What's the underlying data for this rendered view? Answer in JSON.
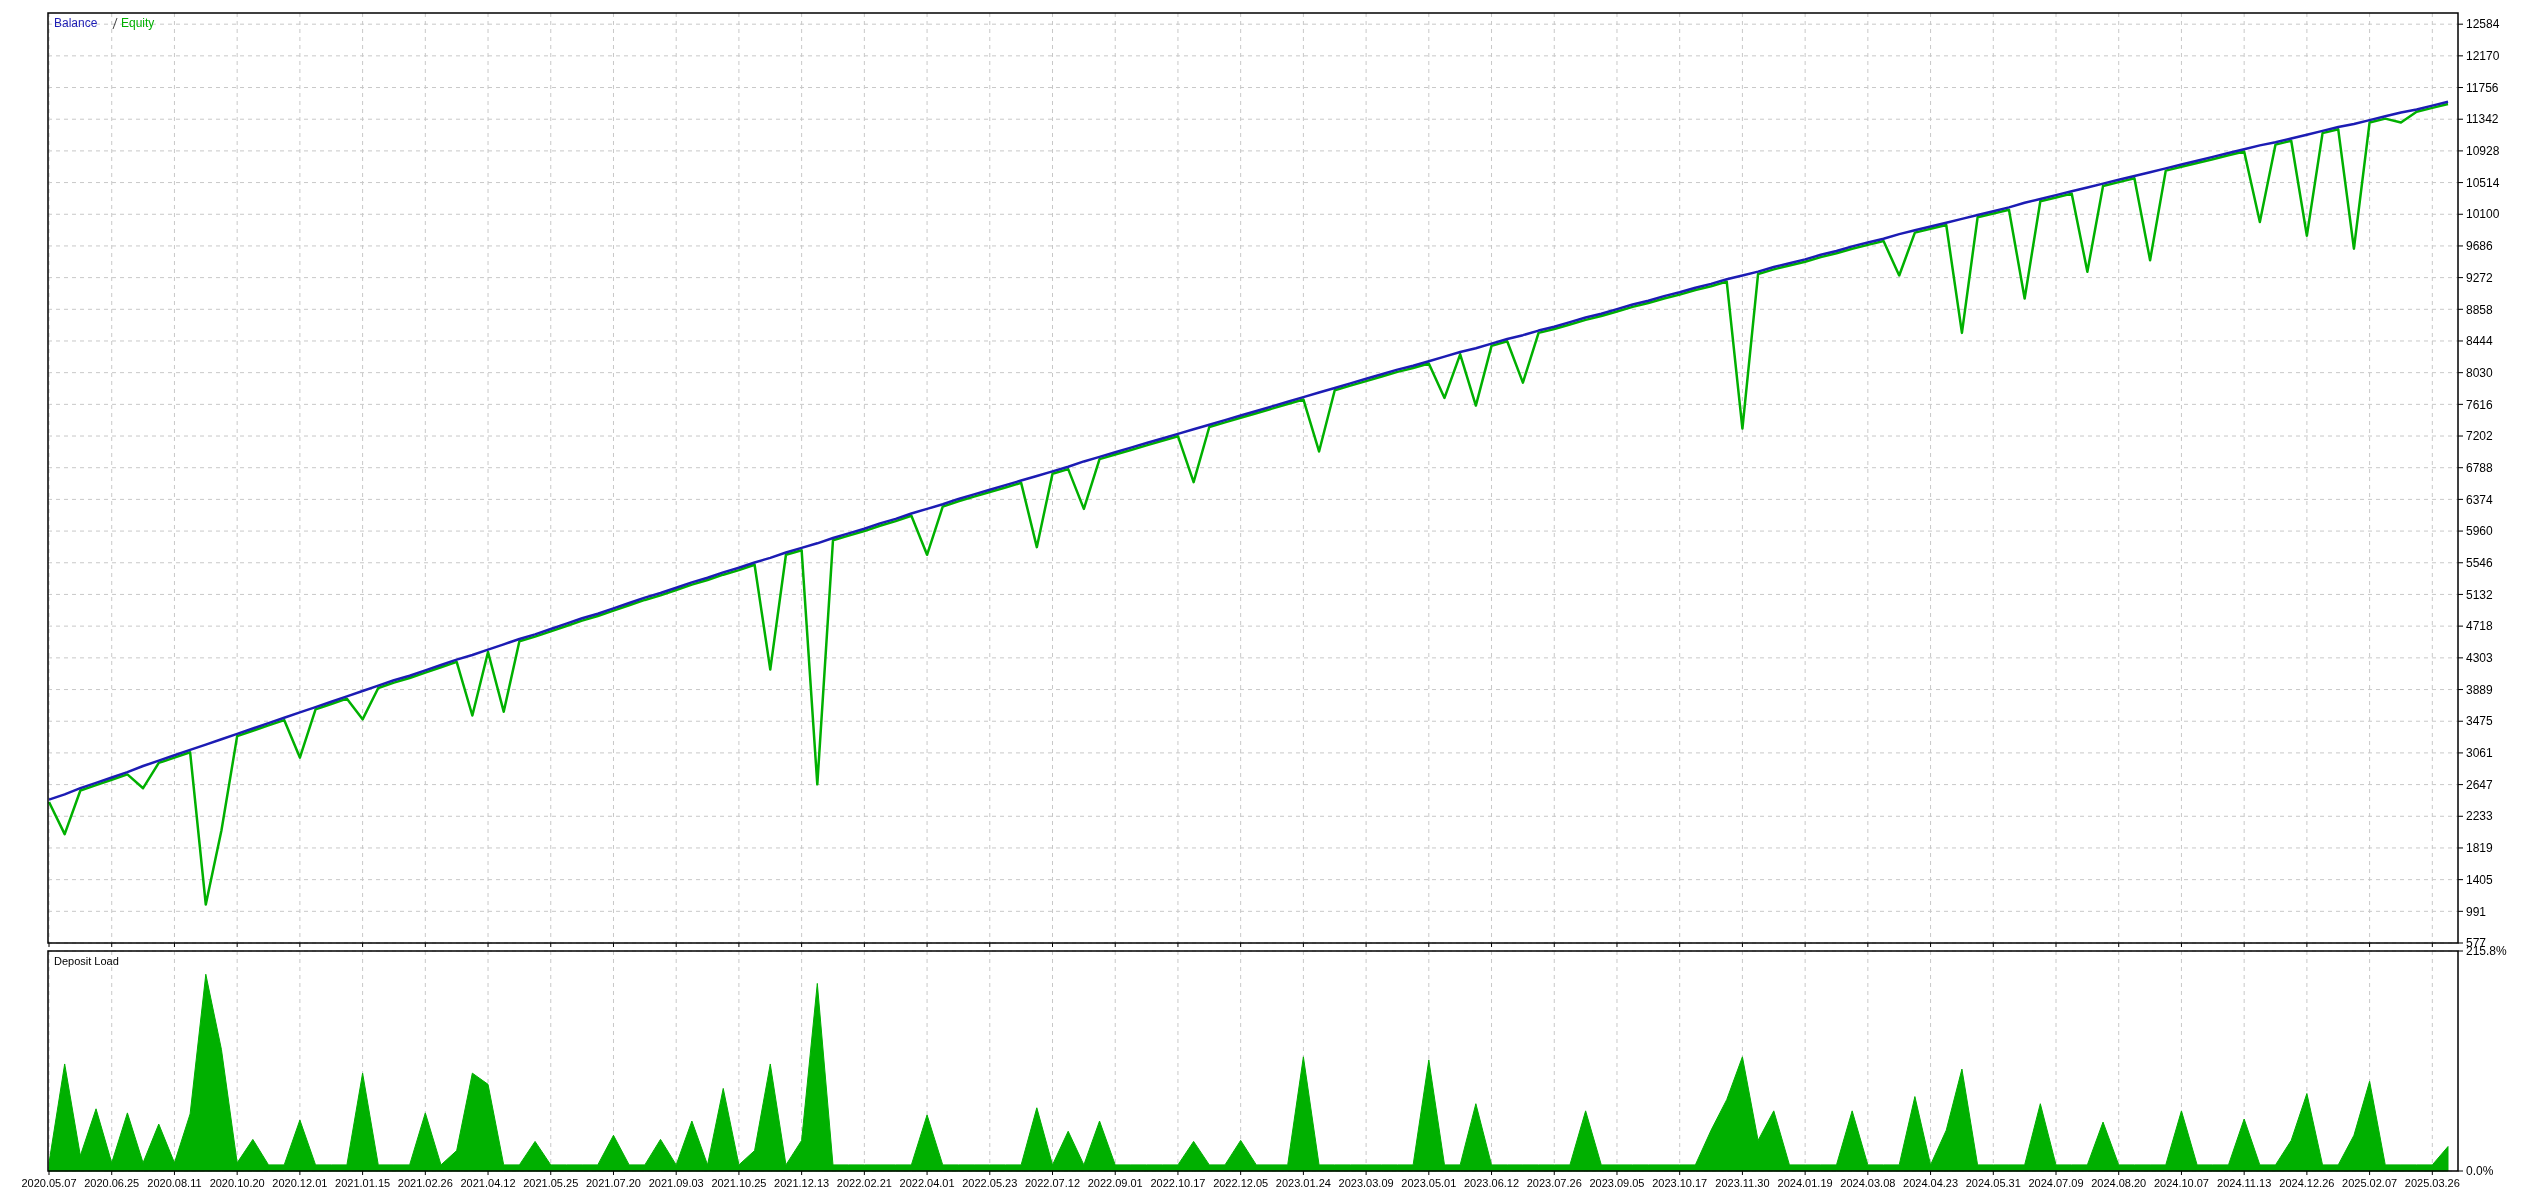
{
  "chart_data": [
    {
      "type": "line",
      "legend": "top left",
      "grid": true,
      "tick_labels": "y",
      "categories": [
        "2020.05.07",
        null,
        null,
        null,
        "2020.06.25",
        null,
        null,
        null,
        "2020.08.11",
        null,
        null,
        null,
        "2020.10.20",
        null,
        null,
        null,
        "2020.12.01",
        null,
        null,
        null,
        "2021.01.15",
        null,
        null,
        null,
        "2021.02.26",
        null,
        null,
        null,
        "2021.04.12",
        null,
        null,
        null,
        "2021.05.25",
        null,
        null,
        null,
        "2021.07.20",
        null,
        null,
        null,
        "2021.09.03",
        null,
        null,
        null,
        "2021.10.25",
        null,
        null,
        null,
        "2021.12.13",
        null,
        null,
        null,
        "2022.02.21",
        null,
        null,
        null,
        "2022.04.01",
        null,
        null,
        null,
        "2022.05.23",
        null,
        null,
        null,
        "2022.07.12",
        null,
        null,
        null,
        "2022.09.01",
        null,
        null,
        null,
        "2022.10.17",
        null,
        null,
        null,
        "2022.12.05",
        null,
        null,
        null,
        "2023.01.24",
        null,
        null,
        null,
        "2023.03.09",
        null,
        null,
        null,
        "2023.05.01",
        null,
        null,
        null,
        "2023.06.12",
        null,
        null,
        null,
        "2023.07.26",
        null,
        null,
        null,
        "2023.09.05",
        null,
        null,
        null,
        "2023.10.17",
        null,
        null,
        null,
        "2023.11.30",
        null,
        null,
        null,
        "2024.01.19",
        null,
        null,
        null,
        "2024.03.08",
        null,
        null,
        null,
        "2024.04.23",
        null,
        null,
        null,
        "2024.05.31",
        null,
        null,
        null,
        "2024.07.09",
        null,
        null,
        null,
        "2024.08.20",
        null,
        null,
        null,
        "2024.10.07",
        null,
        null,
        null,
        "2024.11.13",
        null,
        null,
        null,
        "2024.12.26",
        null,
        null,
        null,
        "2025.02.07",
        null,
        null,
        null,
        "2025.03.26",
        null
      ],
      "ylim": [
        577,
        12730
      ],
      "yticks": [
        577,
        991,
        1405,
        1819,
        2233,
        2647,
        3061,
        3475,
        3889,
        4303,
        4718,
        5132,
        5546,
        5960,
        6374,
        6788,
        7202,
        7616,
        8030,
        8444,
        8858,
        9272,
        9686,
        10100,
        10514,
        10928,
        11342,
        11756,
        12170,
        12584
      ],
      "series": [
        {
          "name": "Equity",
          "color": "#00b000",
          "values": [
            2420,
            2000,
            2570,
            2640,
            2710,
            2780,
            2600,
            2930,
            3000,
            3070,
            1080,
            2050,
            3280,
            3350,
            3420,
            3490,
            3000,
            3630,
            3700,
            3770,
            3500,
            3910,
            3980,
            4040,
            4110,
            4180,
            4250,
            3550,
            4380,
            3600,
            4520,
            4580,
            4650,
            4720,
            4790,
            4850,
            4920,
            4990,
            5060,
            5120,
            5190,
            5260,
            5320,
            5390,
            5450,
            5520,
            4150,
            5650,
            5710,
            2650,
            5840,
            5900,
            5960,
            6030,
            6090,
            6160,
            5650,
            6280,
            6350,
            6410,
            6470,
            6530,
            6590,
            5750,
            6710,
            6770,
            6250,
            6900,
            6960,
            7020,
            7080,
            7140,
            7200,
            6600,
            7320,
            7380,
            7440,
            7500,
            7560,
            7620,
            7680,
            7000,
            7800,
            7860,
            7920,
            7980,
            8040,
            8090,
            8150,
            7700,
            8270,
            7600,
            8380,
            8440,
            7900,
            8550,
            8600,
            8660,
            8720,
            8770,
            8830,
            8890,
            8940,
            9000,
            9050,
            9110,
            9160,
            9220,
            7300,
            9320,
            9380,
            9430,
            9480,
            9540,
            9590,
            9650,
            9700,
            9750,
            9300,
            9860,
            9910,
            9960,
            8550,
            10060,
            10110,
            10160,
            9000,
            10270,
            10320,
            10370,
            9350,
            10470,
            10520,
            10570,
            9500,
            10670,
            10720,
            10770,
            10820,
            10870,
            10920,
            10000,
            11010,
            11060,
            9820,
            11160,
            11210,
            9650,
            11300,
            11350,
            11300,
            11440,
            11490,
            11540
          ]
        },
        {
          "name": "Balance",
          "color": "#1c1cb4",
          "values": [
            2450,
            2520,
            2600,
            2670,
            2740,
            2810,
            2890,
            2960,
            3030,
            3100,
            3170,
            3240,
            3310,
            3380,
            3450,
            3520,
            3590,
            3660,
            3730,
            3800,
            3870,
            3940,
            4010,
            4070,
            4140,
            4210,
            4280,
            4340,
            4410,
            4480,
            4550,
            4610,
            4680,
            4750,
            4820,
            4880,
            4950,
            5020,
            5090,
            5150,
            5220,
            5290,
            5350,
            5420,
            5480,
            5550,
            5610,
            5680,
            5740,
            5800,
            5870,
            5930,
            5990,
            6060,
            6120,
            6190,
            6250,
            6310,
            6380,
            6440,
            6500,
            6560,
            6620,
            6680,
            6740,
            6800,
            6870,
            6930,
            6990,
            7050,
            7110,
            7170,
            7230,
            7290,
            7350,
            7410,
            7470,
            7530,
            7590,
            7650,
            7710,
            7770,
            7830,
            7890,
            7950,
            8010,
            8070,
            8120,
            8180,
            8240,
            8300,
            8350,
            8410,
            8470,
            8520,
            8580,
            8630,
            8690,
            8750,
            8800,
            8860,
            8920,
            8970,
            9030,
            9080,
            9140,
            9190,
            9250,
            9300,
            9350,
            9410,
            9460,
            9510,
            9570,
            9620,
            9680,
            9730,
            9780,
            9840,
            9890,
            9940,
            9990,
            10040,
            10090,
            10140,
            10190,
            10250,
            10300,
            10350,
            10400,
            10450,
            10500,
            10550,
            10600,
            10650,
            10700,
            10750,
            10800,
            10850,
            10900,
            10950,
            11000,
            11040,
            11090,
            11140,
            11190,
            11240,
            11280,
            11330,
            11380,
            11430,
            11470,
            11520,
            11570
          ]
        }
      ]
    },
    {
      "type": "area",
      "title": "Deposit Load",
      "grid": true,
      "color": "#00b000",
      "categories": [
        "2020.05.07",
        null,
        null,
        null,
        "2020.06.25",
        null,
        null,
        null,
        "2020.08.11",
        null,
        null,
        null,
        "2020.10.20",
        null,
        null,
        null,
        "2020.12.01",
        null,
        null,
        null,
        "2021.01.15",
        null,
        null,
        null,
        "2021.02.26",
        null,
        null,
        null,
        "2021.04.12",
        null,
        null,
        null,
        "2021.05.25",
        null,
        null,
        null,
        "2021.07.20",
        null,
        null,
        null,
        "2021.09.03",
        null,
        null,
        null,
        "2021.10.25",
        null,
        null,
        null,
        "2021.12.13",
        null,
        null,
        null,
        "2022.02.21",
        null,
        null,
        null,
        "2022.04.01",
        null,
        null,
        null,
        "2022.05.23",
        null,
        null,
        null,
        "2022.07.12",
        null,
        null,
        null,
        "2022.09.01",
        null,
        null,
        null,
        "2022.10.17",
        null,
        null,
        null,
        "2022.12.05",
        null,
        null,
        null,
        "2023.01.24",
        null,
        null,
        null,
        "2023.03.09",
        null,
        null,
        null,
        "2023.05.01",
        null,
        null,
        null,
        "2023.06.12",
        null,
        null,
        null,
        "2023.07.26",
        null,
        null,
        null,
        "2023.09.05",
        null,
        null,
        null,
        "2023.10.17",
        null,
        null,
        null,
        "2023.11.30",
        null,
        null,
        null,
        "2024.01.19",
        null,
        null,
        null,
        "2024.03.08",
        null,
        null,
        null,
        "2024.04.23",
        null,
        null,
        null,
        "2024.05.31",
        null,
        null,
        null,
        "2024.07.09",
        null,
        null,
        null,
        "2024.08.20",
        null,
        null,
        null,
        "2024.10.07",
        null,
        null,
        null,
        "2024.11.13",
        null,
        null,
        null,
        "2024.12.26",
        null,
        null,
        null,
        "2025.02.07",
        null,
        null,
        null,
        "2025.03.26",
        null
      ],
      "ylim": [
        0,
        215.8
      ],
      "yticks": [
        {
          "value": 0,
          "label": "0.0%"
        },
        {
          "value": 215.8,
          "label": "215.8%"
        }
      ],
      "values": [
        8,
        105,
        15,
        61,
        8,
        57,
        8,
        46,
        8,
        56,
        193,
        119,
        8,
        31,
        6,
        6,
        50,
        6,
        6,
        6,
        96,
        6,
        6,
        6,
        57,
        6,
        20,
        96,
        85,
        6,
        6,
        29,
        6,
        6,
        6,
        6,
        35,
        6,
        6,
        31,
        6,
        49,
        6,
        81,
        6,
        20,
        105,
        6,
        30,
        184,
        6,
        6,
        6,
        6,
        6,
        6,
        55,
        6,
        6,
        6,
        6,
        6,
        6,
        62,
        6,
        39,
        6,
        49,
        6,
        6,
        6,
        6,
        6,
        29,
        6,
        6,
        30,
        6,
        6,
        6,
        112,
        6,
        6,
        6,
        6,
        6,
        6,
        6,
        109,
        6,
        6,
        66,
        6,
        6,
        6,
        6,
        6,
        6,
        59,
        6,
        6,
        6,
        6,
        6,
        6,
        6,
        40,
        70,
        112,
        30,
        59,
        6,
        6,
        6,
        6,
        59,
        6,
        6,
        6,
        73,
        6,
        40,
        100,
        6,
        6,
        6,
        6,
        66,
        6,
        6,
        6,
        48,
        6,
        6,
        6,
        6,
        59,
        6,
        6,
        6,
        51,
        6,
        6,
        30,
        76,
        6,
        6,
        35,
        88,
        6,
        6,
        6,
        6,
        24
      ]
    }
  ]
}
